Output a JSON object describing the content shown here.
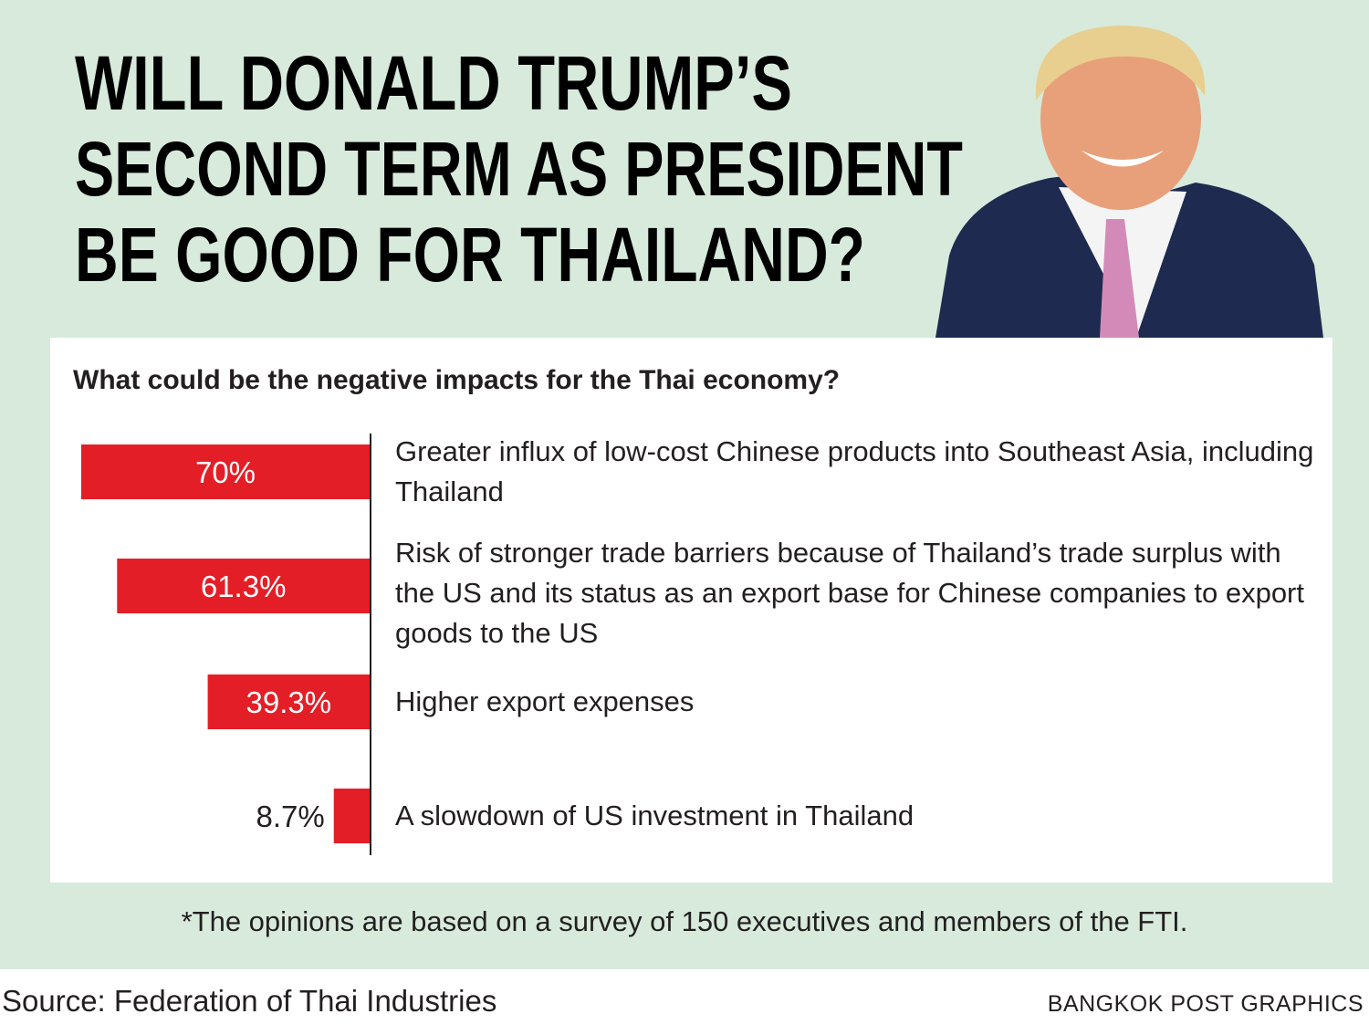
{
  "chart_data": {
    "type": "bar",
    "orientation": "horizontal",
    "title_lines": [
      "WILL DONALD TRUMP’S",
      "SECOND TERM AS PRESIDENT",
      "BE GOOD FOR THAILAND?"
    ],
    "subtitle": "What could be the negative impacts for the Thai economy?",
    "categories": [
      "Greater influx of low-cost Chinese products into Southeast Asia, including Thailand",
      "Risk of stronger trade barriers because of Thailand’s trade surplus with the US and its status as an export base for Chinese companies to export goods to the US",
      "Higher export expenses",
      "A slowdown of US investment in Thailand"
    ],
    "values": [
      70,
      61.3,
      39.3,
      8.7
    ],
    "value_labels": [
      "70%",
      "61.3%",
      "39.3%",
      "8.7%"
    ],
    "color": "#e41e26",
    "xlim": [
      0,
      70
    ],
    "footnote": "*The opinions are based on a survey of 150 executives and members of the FTI.",
    "source": "Source: Federation of Thai Industries",
    "credit": "BANGKOK POST GRAPHICS"
  }
}
